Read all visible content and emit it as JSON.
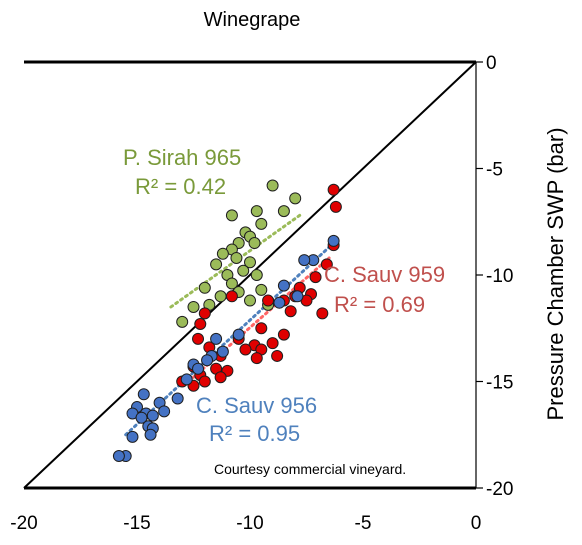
{
  "chart_data": {
    "type": "scatter",
    "title": "Winegrape",
    "xlabel": "",
    "ylabel": "Pressure Chamber SWP (bar)",
    "xlim": [
      -20,
      0
    ],
    "ylim": [
      -20,
      0
    ],
    "x_ticks": [
      "-20",
      "-15",
      "-10",
      "-5",
      "0"
    ],
    "y_ticks": [
      "0",
      "-5",
      "-10",
      "-15",
      "-20"
    ],
    "grid": false,
    "legend": "none",
    "reference_line": "1:1",
    "credit": "Courtesy commercial vineyard.",
    "annotations": [
      {
        "text": "P. Sirah 965",
        "r2": "R² = 0.42",
        "color": "#7a9a3a"
      },
      {
        "text": "C. Sauv 959",
        "r2": "R² = 0.69",
        "color": "#c0504d"
      },
      {
        "text": "C. Sauv 956",
        "r2": "R² = 0.95",
        "color": "#4f81bd"
      }
    ],
    "series": [
      {
        "key": "psirah",
        "color": "#9bbb59",
        "fit_color": "#9bbb59",
        "fit": [
          [
            -13.5,
            -11.5
          ],
          [
            -7.8,
            -7.2
          ]
        ],
        "points": [
          [
            -9.0,
            -5.8
          ],
          [
            -8.0,
            -6.4
          ],
          [
            -8.5,
            -7.0
          ],
          [
            -9.7,
            -7.0
          ],
          [
            -9.5,
            -7.6
          ],
          [
            -10.8,
            -7.2
          ],
          [
            -10.2,
            -8.0
          ],
          [
            -10.0,
            -8.2
          ],
          [
            -9.8,
            -8.5
          ],
          [
            -10.5,
            -8.5
          ],
          [
            -10.8,
            -8.8
          ],
          [
            -11.2,
            -9.0
          ],
          [
            -10.6,
            -9.2
          ],
          [
            -10.0,
            -9.4
          ],
          [
            -11.5,
            -9.5
          ],
          [
            -10.3,
            -9.8
          ],
          [
            -9.7,
            -10.0
          ],
          [
            -11.0,
            -10.0
          ],
          [
            -10.8,
            -10.4
          ],
          [
            -12.0,
            -10.6
          ],
          [
            -9.5,
            -10.7
          ],
          [
            -10.5,
            -10.8
          ],
          [
            -11.3,
            -11.0
          ],
          [
            -10.0,
            -11.2
          ],
          [
            -11.8,
            -11.4
          ],
          [
            -12.5,
            -11.5
          ],
          [
            -9.2,
            -11.4
          ],
          [
            -13.0,
            -12.2
          ]
        ]
      },
      {
        "key": "csauv959",
        "color": "#e00000",
        "fit_color": "#ff6666",
        "fit": [
          [
            -12.5,
            -14.8
          ],
          [
            -6.5,
            -9.2
          ]
        ],
        "points": [
          [
            -6.3,
            -6.0
          ],
          [
            -6.2,
            -6.8
          ],
          [
            -6.3,
            -8.6
          ],
          [
            -6.6,
            -9.5
          ],
          [
            -7.1,
            -10.1
          ],
          [
            -7.8,
            -10.6
          ],
          [
            -7.3,
            -10.9
          ],
          [
            -8.0,
            -11.0
          ],
          [
            -8.5,
            -11.2
          ],
          [
            -7.5,
            -11.2
          ],
          [
            -6.8,
            -11.8
          ],
          [
            -8.2,
            -11.7
          ],
          [
            -9.2,
            -11.2
          ],
          [
            -10.8,
            -11.0
          ],
          [
            -12.0,
            -11.8
          ],
          [
            -12.2,
            -12.3
          ],
          [
            -9.5,
            -12.5
          ],
          [
            -8.5,
            -12.8
          ],
          [
            -10.5,
            -13.0
          ],
          [
            -12.3,
            -13.0
          ],
          [
            -11.8,
            -13.4
          ],
          [
            -9.0,
            -13.2
          ],
          [
            -9.8,
            -13.3
          ],
          [
            -10.2,
            -13.5
          ],
          [
            -9.5,
            -13.5
          ],
          [
            -11.3,
            -13.8
          ],
          [
            -9.7,
            -13.9
          ],
          [
            -8.8,
            -13.8
          ],
          [
            -12.5,
            -14.3
          ],
          [
            -11.0,
            -14.5
          ],
          [
            -11.5,
            -14.4
          ],
          [
            -11.3,
            -14.8
          ],
          [
            -12.2,
            -14.7
          ],
          [
            -12.0,
            -15.0
          ],
          [
            -13.0,
            -15.0
          ],
          [
            -12.5,
            -15.2
          ]
        ]
      },
      {
        "key": "csauv956",
        "color": "#4472c4",
        "fit_color": "#4f81bd",
        "fit": [
          [
            -15.5,
            -17.5
          ],
          [
            -6.3,
            -8.5
          ]
        ],
        "points": [
          [
            -6.3,
            -8.4
          ],
          [
            -7.2,
            -9.3
          ],
          [
            -7.6,
            -9.3
          ],
          [
            -8.5,
            -10.5
          ],
          [
            -7.9,
            -11.0
          ],
          [
            -8.7,
            -11.3
          ],
          [
            -10.5,
            -12.8
          ],
          [
            -11.5,
            -13.0
          ],
          [
            -11.2,
            -13.6
          ],
          [
            -11.7,
            -13.8
          ],
          [
            -11.9,
            -14.0
          ],
          [
            -12.5,
            -14.2
          ],
          [
            -12.3,
            -14.4
          ],
          [
            -12.8,
            -14.9
          ],
          [
            -13.2,
            -15.8
          ],
          [
            -14.7,
            -15.6
          ],
          [
            -14.0,
            -16.0
          ],
          [
            -15.0,
            -16.2
          ],
          [
            -14.6,
            -16.5
          ],
          [
            -15.2,
            -16.5
          ],
          [
            -14.8,
            -16.7
          ],
          [
            -14.3,
            -16.6
          ],
          [
            -13.8,
            -16.4
          ],
          [
            -14.5,
            -17.1
          ],
          [
            -14.3,
            -17.2
          ],
          [
            -14.4,
            -17.5
          ],
          [
            -15.2,
            -17.6
          ],
          [
            -15.5,
            -18.5
          ],
          [
            -15.8,
            -18.5
          ]
        ]
      }
    ]
  }
}
